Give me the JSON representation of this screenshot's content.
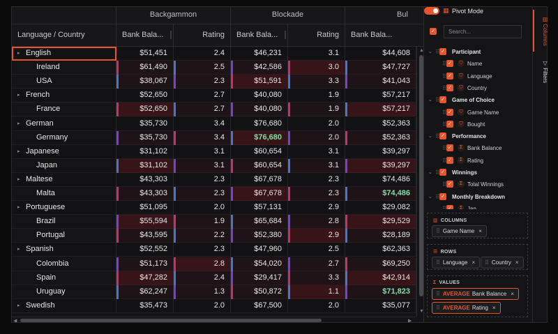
{
  "grid": {
    "group_headers": [
      "Backgammon",
      "Blockade",
      "Bul"
    ],
    "column_headers": [
      "Language / Country",
      "Bank Bala...",
      "Rating",
      "Bank Bala...",
      "Rating",
      "Bank Bala..."
    ],
    "rows": [
      {
        "name": "English",
        "group": true,
        "v": [
          "$51,451",
          "2.4",
          "$46,231",
          "3.1",
          "$44,608"
        ]
      },
      {
        "name": "Ireland",
        "group": false,
        "v": [
          "$61,490",
          "2.5",
          "$42,586",
          "3.0",
          "$47,727"
        ]
      },
      {
        "name": "USA",
        "group": false,
        "v": [
          "$38,067",
          "2.3",
          "$51,591",
          "3.3",
          "$41,043"
        ]
      },
      {
        "name": "French",
        "group": true,
        "v": [
          "$52,650",
          "2.7",
          "$40,080",
          "1.9",
          "$57,217"
        ]
      },
      {
        "name": "France",
        "group": false,
        "v": [
          "$52,650",
          "2.7",
          "$40,080",
          "1.9",
          "$57,217"
        ]
      },
      {
        "name": "German",
        "group": true,
        "v": [
          "$35,730",
          "3.4",
          "$76,680",
          "2.0",
          "$52,363"
        ]
      },
      {
        "name": "Germany",
        "group": false,
        "v": [
          "$35,730",
          "3.4",
          "$76,680",
          "2.0",
          "$52,363"
        ]
      },
      {
        "name": "Japanese",
        "group": true,
        "v": [
          "$31,102",
          "3.1",
          "$60,654",
          "3.1",
          "$39,297"
        ]
      },
      {
        "name": "Japan",
        "group": false,
        "v": [
          "$31,102",
          "3.1",
          "$60,654",
          "3.1",
          "$39,297"
        ]
      },
      {
        "name": "Maltese",
        "group": true,
        "v": [
          "$43,303",
          "2.3",
          "$67,678",
          "2.3",
          "$74,486"
        ]
      },
      {
        "name": "Malta",
        "group": false,
        "v": [
          "$43,303",
          "2.3",
          "$67,678",
          "2.3",
          "$74,486"
        ]
      },
      {
        "name": "Portuguese",
        "group": true,
        "v": [
          "$51,095",
          "2.0",
          "$57,131",
          "2.9",
          "$29,082"
        ]
      },
      {
        "name": "Brazil",
        "group": false,
        "v": [
          "$55,594",
          "1.9",
          "$65,684",
          "2.8",
          "$29,529"
        ]
      },
      {
        "name": "Portugal",
        "group": false,
        "v": [
          "$43,595",
          "2.2",
          "$52,380",
          "2.9",
          "$28,189"
        ]
      },
      {
        "name": "Spanish",
        "group": true,
        "v": [
          "$52,552",
          "2.3",
          "$47,960",
          "2.5",
          "$62,363"
        ]
      },
      {
        "name": "Colombia",
        "group": false,
        "v": [
          "$51,173",
          "2.8",
          "$54,020",
          "2.7",
          "$69,250"
        ]
      },
      {
        "name": "Spain",
        "group": false,
        "v": [
          "$47,282",
          "2.4",
          "$29,417",
          "3.3",
          "$42,914"
        ]
      },
      {
        "name": "Uruguay",
        "group": false,
        "v": [
          "$62,247",
          "1.3",
          "$50,872",
          "1.1",
          "$71,823"
        ]
      },
      {
        "name": "Swedish",
        "group": true,
        "v": [
          "$35,473",
          "2.0",
          "$67,500",
          "2.0",
          "$35,077"
        ]
      }
    ]
  },
  "panel": {
    "pivot_mode_label": "Pivot Mode",
    "search_placeholder": "Search...",
    "tabs": [
      "Columns",
      "Filters"
    ],
    "tree": [
      {
        "label": "Participant",
        "level": 0,
        "icon": ""
      },
      {
        "label": "Name",
        "level": 1,
        "icon": "group-icon"
      },
      {
        "label": "Language",
        "level": 1,
        "icon": "group-icon"
      },
      {
        "label": "Country",
        "level": 1,
        "icon": "group-icon"
      },
      {
        "label": "Game of Choice",
        "level": 0,
        "icon": ""
      },
      {
        "label": "Game Name",
        "level": 1,
        "icon": "group-icon"
      },
      {
        "label": "Bought",
        "level": 1,
        "icon": "group-icon"
      },
      {
        "label": "Performance",
        "level": 0,
        "icon": ""
      },
      {
        "label": "Bank Balance",
        "level": 1,
        "icon": "sigma-icon"
      },
      {
        "label": "Rating",
        "level": 1,
        "icon": "sigma-icon"
      },
      {
        "label": "Winnings",
        "level": 0,
        "icon": ""
      },
      {
        "label": "Total Winnings",
        "level": 1,
        "icon": "sigma-icon"
      },
      {
        "label": "Monthly Breakdown",
        "level": 0,
        "icon": ""
      },
      {
        "label": "Jan",
        "level": 1,
        "icon": "sigma-icon"
      }
    ],
    "columns_title": "COLUMNS",
    "columns_pills": [
      "Game Name"
    ],
    "rows_title": "ROWS",
    "rows_pills": [
      "Language",
      "Country"
    ],
    "values_title": "VALUES",
    "values_pills": [
      {
        "agg": "AVERAGE",
        "label": "Bank Balance"
      },
      {
        "agg": "AVERAGE",
        "label": "Rating"
      }
    ]
  }
}
